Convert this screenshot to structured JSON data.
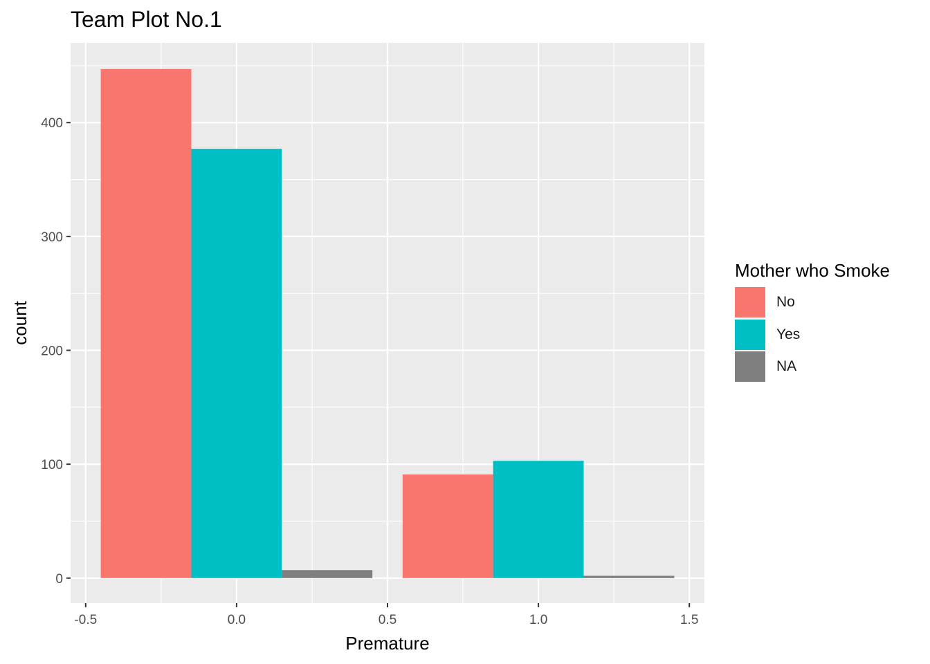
{
  "chart_data": {
    "type": "bar",
    "title": "Team Plot No.1",
    "xlabel": "Premature",
    "ylabel": "count",
    "xlim": [
      -0.55,
      1.55
    ],
    "ylim": [
      -22,
      470
    ],
    "x_ticks": [
      -0.5,
      0.0,
      0.5,
      1.0,
      1.5
    ],
    "x_tick_labels": [
      "-0.5",
      "0.0",
      "0.5",
      "1.0",
      "1.5"
    ],
    "y_ticks": [
      0,
      100,
      200,
      300,
      400
    ],
    "y_tick_labels": [
      "0",
      "100",
      "200",
      "300",
      "400"
    ],
    "grid": true,
    "legend_position": "right",
    "legend_title": "Mother who Smoke",
    "categories": [
      0,
      1
    ],
    "bar_width": 0.9,
    "series": [
      {
        "name": "No",
        "color": "#F8766D",
        "values": [
          447,
          91
        ]
      },
      {
        "name": "Yes",
        "color": "#00BFC4",
        "values": [
          377,
          103
        ]
      },
      {
        "name": "NA",
        "color": "#7F7F7F",
        "values": [
          7,
          2
        ]
      }
    ]
  }
}
